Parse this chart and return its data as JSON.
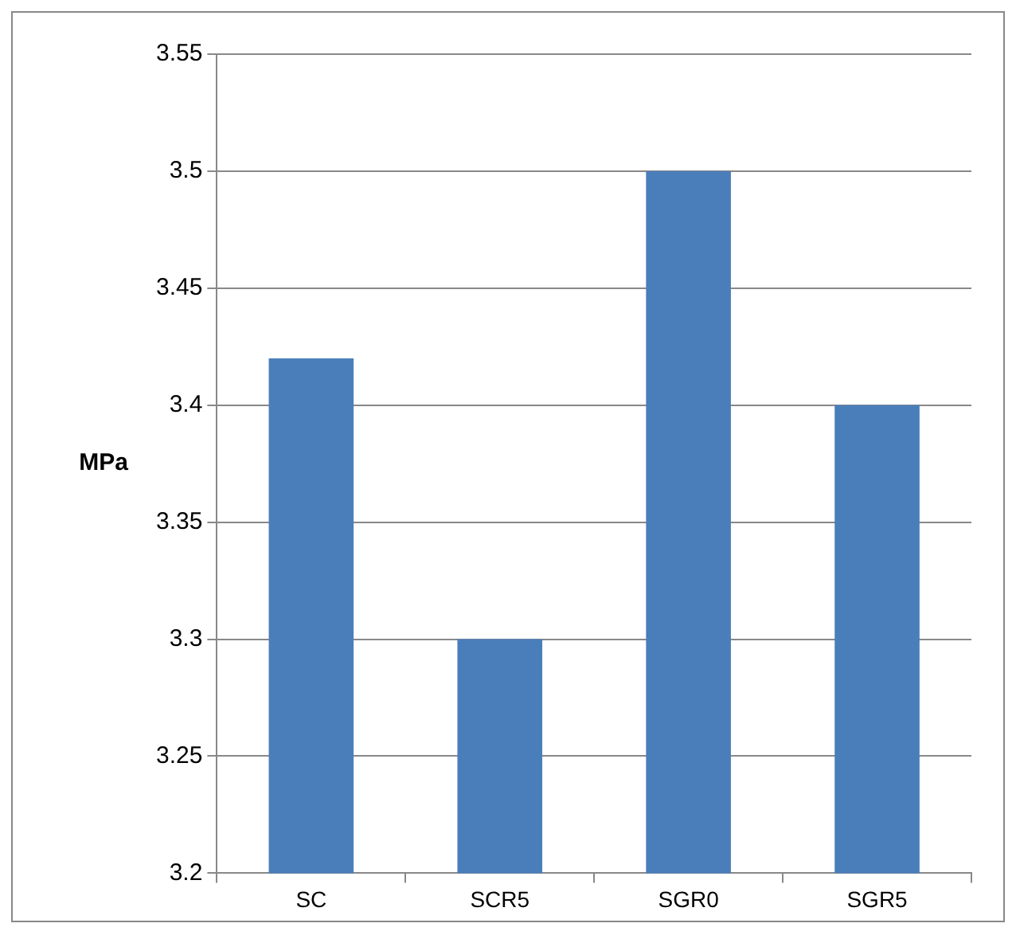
{
  "chart_data": {
    "type": "bar",
    "ylabel": "MPa",
    "categories": [
      "SC",
      "SCR5",
      "SGR0",
      "SGR5"
    ],
    "values": [
      3.42,
      3.3,
      3.5,
      3.4
    ],
    "color": "#4a7ebb",
    "ylim": [
      3.2,
      3.55
    ],
    "yticks": [
      3.2,
      3.25,
      3.3,
      3.35,
      3.4,
      3.45,
      3.5,
      3.55
    ],
    "grid": "y",
    "legend": false
  }
}
